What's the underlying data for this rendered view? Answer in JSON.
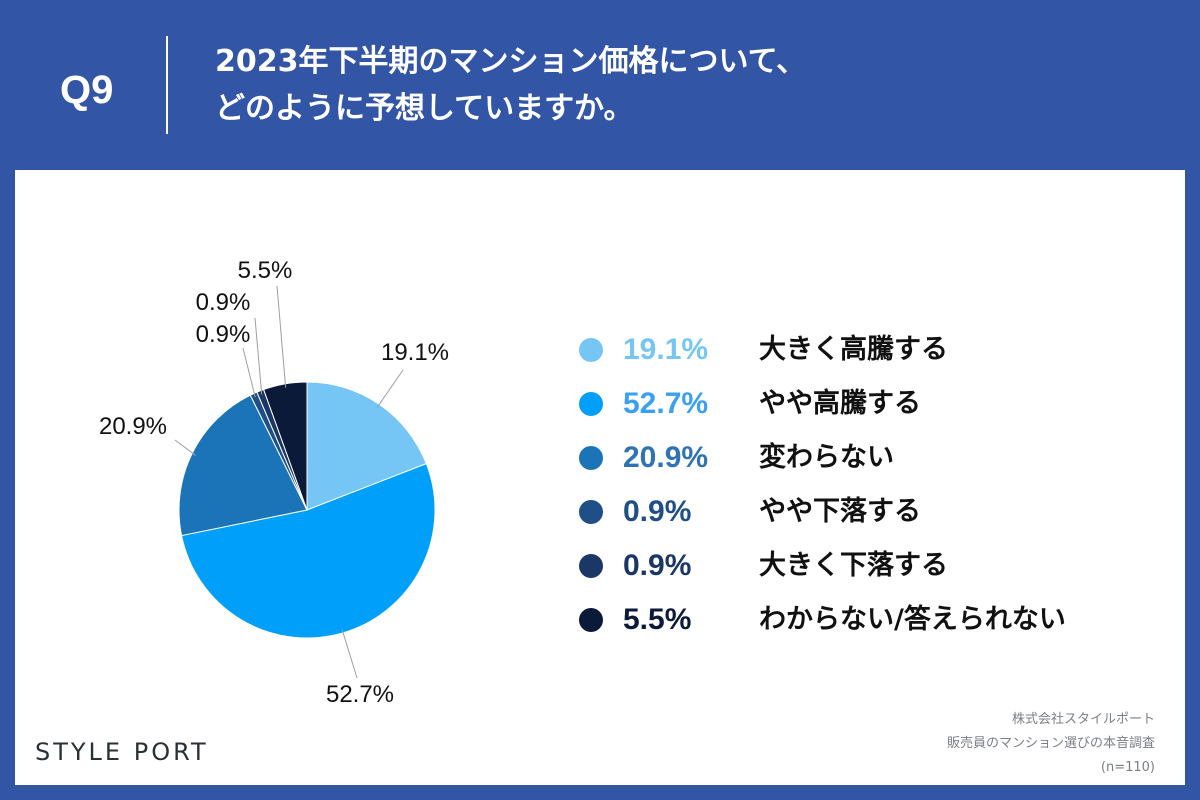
{
  "header": {
    "question_label": "Q9",
    "title_line1": "2023年下半期のマンション価格について、",
    "title_line2": "どのように予想していますか。"
  },
  "chart_data": {
    "type": "pie",
    "title": "",
    "slices": [
      {
        "label": "大きく高騰する",
        "value": 19.1,
        "display": "19.1%",
        "color": "#76c6f5"
      },
      {
        "label": "やや高騰する",
        "value": 52.7,
        "display": "52.7%",
        "color": "#00a0fa"
      },
      {
        "label": "変わらない",
        "value": 20.9,
        "display": "20.9%",
        "color": "#1b74b8"
      },
      {
        "label": "やや下落する",
        "value": 0.9,
        "display": "0.9%",
        "color": "#1e4f86"
      },
      {
        "label": "大きく下落する",
        "value": 0.9,
        "display": "0.9%",
        "color": "#1b3766"
      },
      {
        "label": "わからない/答えられない",
        "value": 5.5,
        "display": "5.5%",
        "color": "#0b1a38"
      }
    ],
    "legend_placement": "right"
  },
  "legend": {
    "text_colors": [
      "#76c6f5",
      "#3aa1f0",
      "#2f73b4",
      "#1e4f86",
      "#1b3766",
      "#0b1a38"
    ]
  },
  "footer": {
    "logo": "STYLE PORT",
    "source_line1": "株式会社スタイルポート",
    "source_line2": "販売員のマンション選びの本音調査",
    "source_line3": "(n=110)"
  }
}
